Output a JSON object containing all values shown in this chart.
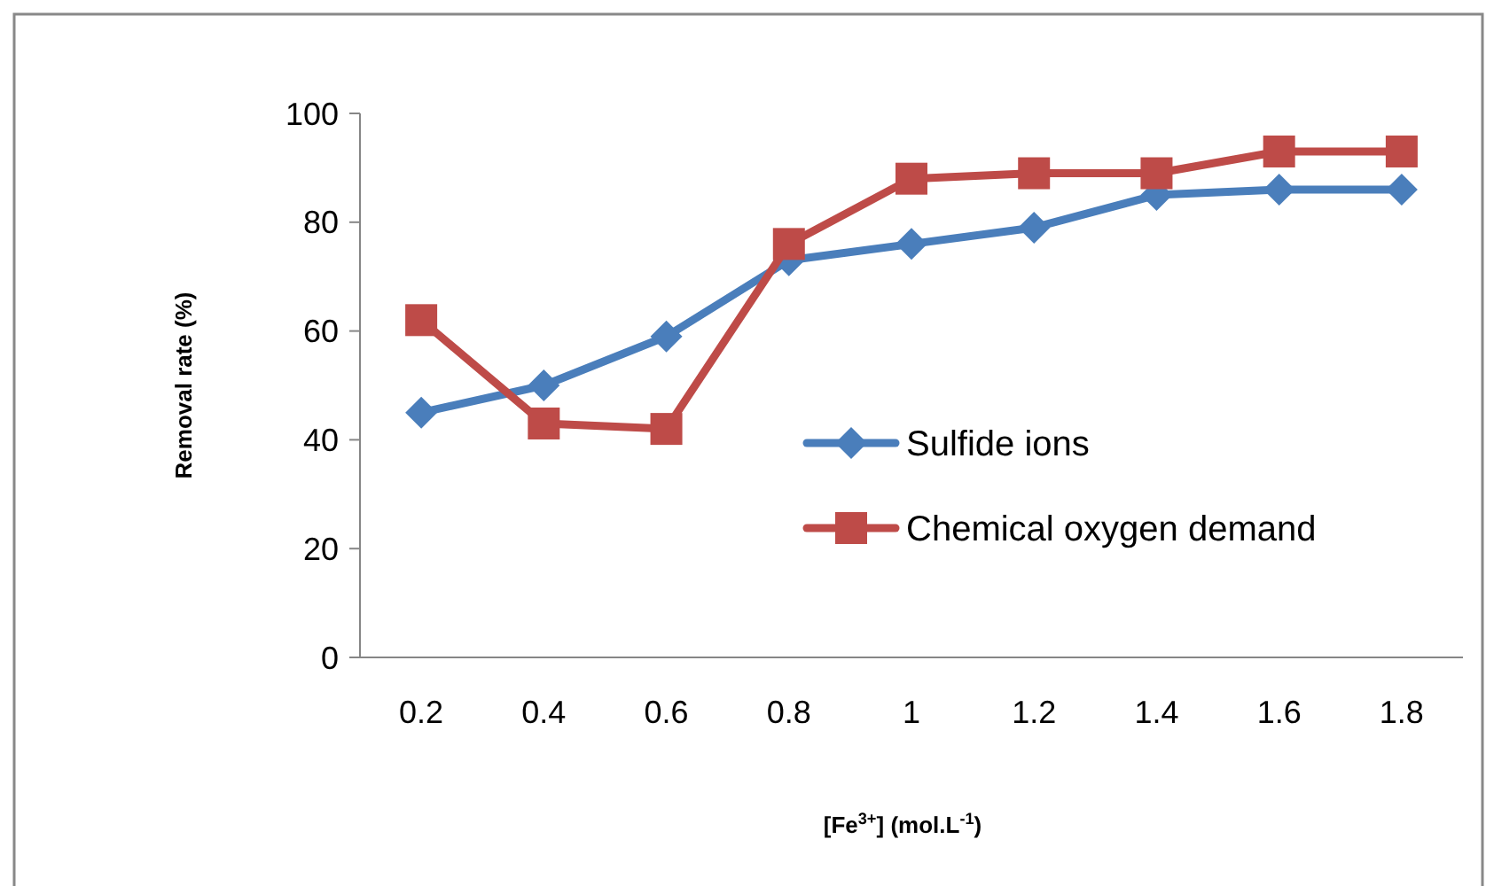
{
  "chart_data": {
    "type": "line",
    "ylabel": "Removal rate (%)",
    "xlabel": "[Fe$^{3+}$] (mol.L$^{-1}$)",
    "categories": [
      "0.2",
      "0.4",
      "0.6",
      "0.8",
      "1",
      "1.2",
      "1.4",
      "1.6",
      "1.8"
    ],
    "ylim": [
      0,
      100
    ],
    "yticks": [
      0,
      20,
      40,
      60,
      80,
      100
    ],
    "grid": false,
    "legend": "right",
    "series": [
      {
        "name": "Sulfide ions",
        "color": "#4a7ebb",
        "marker": "diamond",
        "values": [
          45,
          50,
          59,
          73,
          76,
          79,
          85,
          86,
          86
        ]
      },
      {
        "name": "Chemical oxygen demand",
        "color": "#be4b48",
        "marker": "square",
        "values": [
          62,
          43,
          42,
          76,
          88,
          89,
          89,
          93,
          93
        ]
      }
    ]
  }
}
